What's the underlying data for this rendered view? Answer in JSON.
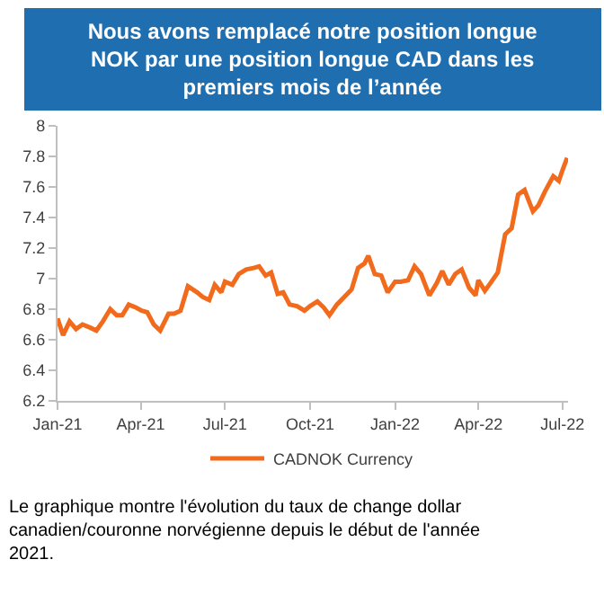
{
  "chart_data": {
    "type": "line",
    "title": "Nous avons remplacé notre position longue NOK par une position longue CAD dans les premiers mois de l’année",
    "annotations": [
      "Le graphique montre l'évolution du taux de change dollar canadien/couronne norvégienne depuis le début de l'année 2021."
    ],
    "x": [
      "2021-01-01",
      "2021-01-07",
      "2021-01-14",
      "2021-01-21",
      "2021-01-28",
      "2021-02-05",
      "2021-02-12",
      "2021-02-19",
      "2021-02-27",
      "2021-03-06",
      "2021-03-12",
      "2021-03-19",
      "2021-03-27",
      "2021-04-02",
      "2021-04-08",
      "2021-04-15",
      "2021-04-22",
      "2021-05-01",
      "2021-05-07",
      "2021-05-14",
      "2021-05-22",
      "2021-06-01",
      "2021-06-07",
      "2021-06-14",
      "2021-06-20",
      "2021-06-27",
      "2021-07-01",
      "2021-07-09",
      "2021-07-16",
      "2021-07-24",
      "2021-08-01",
      "2021-08-07",
      "2021-08-14",
      "2021-08-20",
      "2021-08-27",
      "2021-09-02",
      "2021-09-09",
      "2021-09-17",
      "2021-09-25",
      "2021-10-01",
      "2021-10-09",
      "2021-10-16",
      "2021-10-22",
      "2021-10-30",
      "2021-11-07",
      "2021-11-15",
      "2021-11-22",
      "2021-11-29",
      "2021-12-03",
      "2021-12-10",
      "2021-12-17",
      "2021-12-24",
      "2022-01-01",
      "2022-01-07",
      "2022-01-15",
      "2022-01-22",
      "2022-01-29",
      "2022-02-07",
      "2022-02-15",
      "2022-02-21",
      "2022-02-28",
      "2022-03-07",
      "2022-03-14",
      "2022-03-22",
      "2022-03-29",
      "2022-04-01",
      "2022-04-08",
      "2022-04-14",
      "2022-04-22",
      "2022-04-30",
      "2022-05-07",
      "2022-05-14",
      "2022-05-21",
      "2022-05-30",
      "2022-06-05",
      "2022-06-12",
      "2022-06-21",
      "2022-06-27",
      "2022-07-01",
      "2022-07-06"
    ],
    "series": [
      {
        "name": "CADNOK Currency",
        "color": "#f26b1d",
        "values": [
          6.74,
          6.63,
          6.72,
          6.67,
          6.7,
          6.68,
          6.66,
          6.72,
          6.8,
          6.76,
          6.76,
          6.83,
          6.81,
          6.79,
          6.78,
          6.7,
          6.66,
          6.77,
          6.77,
          6.79,
          6.95,
          6.91,
          6.88,
          6.86,
          6.96,
          6.91,
          6.98,
          6.96,
          7.03,
          7.06,
          7.07,
          7.08,
          7.02,
          7.04,
          6.9,
          6.91,
          6.83,
          6.82,
          6.79,
          6.82,
          6.85,
          6.81,
          6.76,
          6.83,
          6.88,
          6.93,
          7.07,
          7.1,
          7.15,
          7.03,
          7.02,
          6.91,
          6.98,
          6.98,
          6.99,
          7.08,
          7.03,
          6.89,
          6.97,
          7.05,
          6.96,
          7.03,
          7.06,
          6.94,
          6.89,
          6.99,
          6.92,
          6.97,
          7.04,
          7.29,
          7.33,
          7.55,
          7.58,
          7.44,
          7.48,
          7.57,
          7.67,
          7.64,
          7.71,
          7.79
        ]
      }
    ],
    "xlim": [
      "2021-01-01",
      "2022-07-07"
    ],
    "xticks": [
      {
        "value": "2021-01-01",
        "label": "Jan-21"
      },
      {
        "value": "2021-04-01",
        "label": "Apr-21"
      },
      {
        "value": "2021-07-01",
        "label": "Jul-21"
      },
      {
        "value": "2021-10-01",
        "label": "Oct-21"
      },
      {
        "value": "2022-01-01",
        "label": "Jan-22"
      },
      {
        "value": "2022-04-01",
        "label": "Apr-22"
      },
      {
        "value": "2022-07-01",
        "label": "Jul-22"
      }
    ],
    "ylim": [
      6.2,
      8
    ],
    "yticks": [
      6.2,
      6.4,
      6.6,
      6.8,
      7,
      7.2,
      7.4,
      7.6,
      7.8,
      8
    ],
    "grid": false,
    "legend": "bottom",
    "marker": "none",
    "line_style": "solid"
  }
}
